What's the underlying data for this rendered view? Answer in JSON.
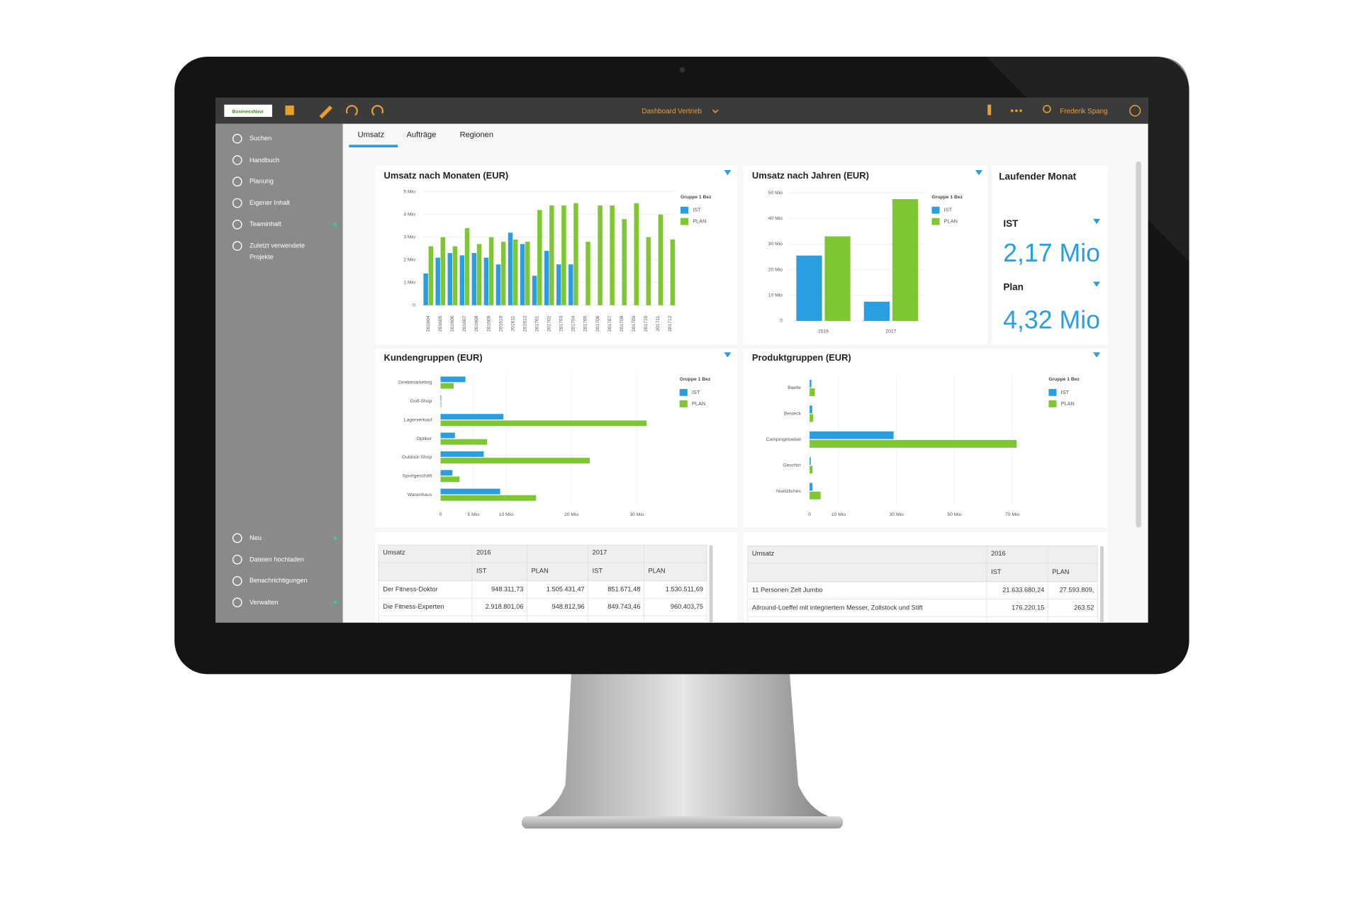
{
  "toolbar": {
    "logo": "BusinessNavi",
    "dashboard": "Dashboard Vertrieb",
    "user": "Frederik Spang"
  },
  "sidebar": {
    "top": [
      "Suchen",
      "Handbuch",
      "Planung",
      "Eigener Inhalt",
      "Teaminhalt",
      "Zuletzt verwendete Projekte"
    ],
    "bottom": [
      "Neu",
      "Dateien hochladen",
      "Benachrichtigungen",
      "Verwalten"
    ]
  },
  "tabs": [
    "Umsatz",
    "Aufträge",
    "Regionen"
  ],
  "chart_data": [
    {
      "type": "bar",
      "title": "Umsatz nach Monaten (EUR)",
      "categories": [
        "201604",
        "201605",
        "201606",
        "201607",
        "201608",
        "201609",
        "201610",
        "201611",
        "201612",
        "201701",
        "201702",
        "201703",
        "201704",
        "201705",
        "201706",
        "201707",
        "201708",
        "201709",
        "201710",
        "201711",
        "201712"
      ],
      "series": [
        {
          "name": "IST",
          "color": "#2a9ee0",
          "values": [
            1.4,
            2.1,
            2.3,
            2.2,
            2.3,
            2.1,
            1.8,
            3.2,
            2.7,
            1.3,
            2.4,
            1.8,
            1.8,
            null,
            null,
            null,
            null,
            null,
            null,
            null,
            null
          ]
        },
        {
          "name": "PLAN",
          "color": "#7dc832",
          "values": [
            2.6,
            3.0,
            2.6,
            3.4,
            2.7,
            3.0,
            2.8,
            2.9,
            2.8,
            4.2,
            4.4,
            4.4,
            4.5,
            2.8,
            4.4,
            4.4,
            3.8,
            4.5,
            3.0,
            4.0,
            2.9
          ]
        }
      ],
      "ylim": [
        0,
        5
      ],
      "yticks": [
        0,
        {
          "value": 1,
          "label": "1 Mio"
        },
        {
          "value": 2,
          "label": "2 Mio"
        },
        {
          "value": 3,
          "label": "3 Mio"
        },
        {
          "value": 4,
          "label": "4 Mio"
        },
        {
          "value": 5,
          "label": "5 Mio"
        }
      ],
      "legend_title": "Gruppe 1 Bez",
      "grid": true
    },
    {
      "type": "bar",
      "title": "Umsatz nach Jahren (EUR)",
      "categories": [
        "2016",
        "2017"
      ],
      "series": [
        {
          "name": "IST",
          "color": "#2a9ee0",
          "values": [
            25.5,
            7.5
          ]
        },
        {
          "name": "PLAN",
          "color": "#7dc832",
          "values": [
            33,
            47.5
          ]
        }
      ],
      "ylim": [
        0,
        50
      ],
      "yticks": [
        0,
        {
          "value": 10,
          "label": "10 Mio"
        },
        {
          "value": 20,
          "label": "20 Mio"
        },
        {
          "value": 30,
          "label": "30 Mio"
        },
        {
          "value": 40,
          "label": "40 Mio"
        },
        {
          "value": 50,
          "label": "50 Mio"
        }
      ],
      "legend_title": "Gruppe 1 Bez",
      "grid": true
    },
    {
      "type": "barh",
      "title": "Kundengruppen (EUR)",
      "categories": [
        "Direktmarketing",
        "Golf-Shop",
        "Lagerverkauf",
        "Optiker",
        "Outdoor-Shop",
        "Sportgeschäft",
        "Warenhaus"
      ],
      "series": [
        {
          "name": "IST",
          "color": "#2a9ee0",
          "values": [
            3.8,
            0.1,
            9.6,
            2.2,
            6.6,
            1.8,
            9.1
          ]
        },
        {
          "name": "PLAN",
          "color": "#7dc832",
          "values": [
            2,
            0.1,
            31.5,
            7.1,
            22.8,
            2.9,
            14.6
          ]
        }
      ],
      "xlim": [
        0,
        35
      ],
      "xticks": [
        0,
        {
          "value": 5,
          "label": "5 Mio"
        },
        {
          "value": 10,
          "label": "10 Mio"
        },
        {
          "value": 20,
          "label": "20 Mio"
        },
        {
          "value": 30,
          "label": "30 Mio"
        }
      ],
      "legend_title": "Gruppe 1 Bez",
      "grid": true
    },
    {
      "type": "barh",
      "title": "Produktgruppen (EUR)",
      "categories": [
        "Baelle",
        "Besteck",
        "Campingmoebel",
        "Geschirr",
        "Nuetzliches"
      ],
      "series": [
        {
          "name": "IST",
          "color": "#2a9ee0",
          "values": [
            0.6,
            0.9,
            29,
            0.4,
            1.0
          ]
        },
        {
          "name": "PLAN",
          "color": "#7dc832",
          "values": [
            1.8,
            1.2,
            71.5,
            1.0,
            3.8
          ]
        }
      ],
      "xlim": [
        0,
        75
      ],
      "xticks": [
        0,
        {
          "value": 10,
          "label": "10 Mio"
        },
        {
          "value": 30,
          "label": "30 Mio"
        },
        {
          "value": 50,
          "label": "50 Mio"
        },
        {
          "value": 70,
          "label": "70 Mio"
        }
      ],
      "legend_title": "Gruppe 1 Bez",
      "grid": true
    }
  ],
  "kpi": {
    "title": "Laufender Monat",
    "items": [
      {
        "label": "IST",
        "value": "2,17 Mio"
      },
      {
        "label": "Plan",
        "value": "4,32 Mio"
      }
    ]
  },
  "tables": [
    {
      "header": [
        "Umsatz",
        "2016",
        "2017"
      ],
      "subheader": [
        "IST",
        "PLAN",
        "IST",
        "PLAN"
      ],
      "rows": [
        [
          "Der Fitness-Doktor",
          "948.311,73",
          "1.505.431,47",
          "851.671,48",
          "1.530.511,69"
        ],
        [
          "Die Fitness-Experten",
          "2.918.801,06",
          "948.812,96",
          "849.743,46",
          "960.403,75"
        ]
      ]
    },
    {
      "header": [
        "Umsatz",
        "2016"
      ],
      "subheader": [
        "IST",
        "PLAN"
      ],
      "rows": [
        [
          "11 Personen Zelt Jumbo",
          "21.633.680,24",
          "27.593.809,"
        ],
        [
          "Allround-Loeffel mit integriertem Messer, Zollstock und Stift",
          "176.220,15",
          "263.52"
        ]
      ]
    }
  ]
}
